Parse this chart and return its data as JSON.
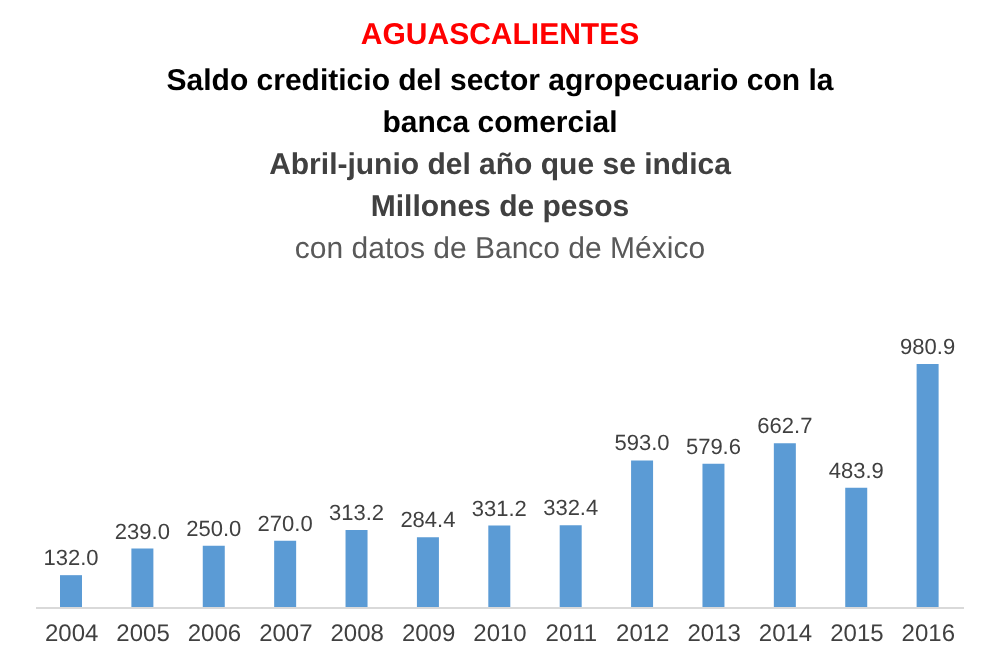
{
  "chart_data": {
    "type": "bar",
    "title": "AGUASCALIENTES",
    "subtitle": "Saldo crediticio del sector agropecuario con la banca comercial",
    "annotations": [
      "Abril-junio del año que se indica",
      "Millones de pesos",
      "con datos de Banco de México"
    ],
    "categories": [
      "2004",
      "2005",
      "2006",
      "2007",
      "2008",
      "2009",
      "2010",
      "2011",
      "2012",
      "2013",
      "2014",
      "2015",
      "2016"
    ],
    "values": [
      132.0,
      239.0,
      250.0,
      270.0,
      313.2,
      284.4,
      331.2,
      332.4,
      593.0,
      579.6,
      662.7,
      483.9,
      980.9
    ],
    "value_labels": [
      "132.0",
      "239.0",
      "250.0",
      "270.0",
      "313.2",
      "284.4",
      "331.2",
      "332.4",
      "593.0",
      "579.6",
      "662.7",
      "483.9",
      "980.9"
    ],
    "color": "#5b9bd5",
    "grid": false
  }
}
